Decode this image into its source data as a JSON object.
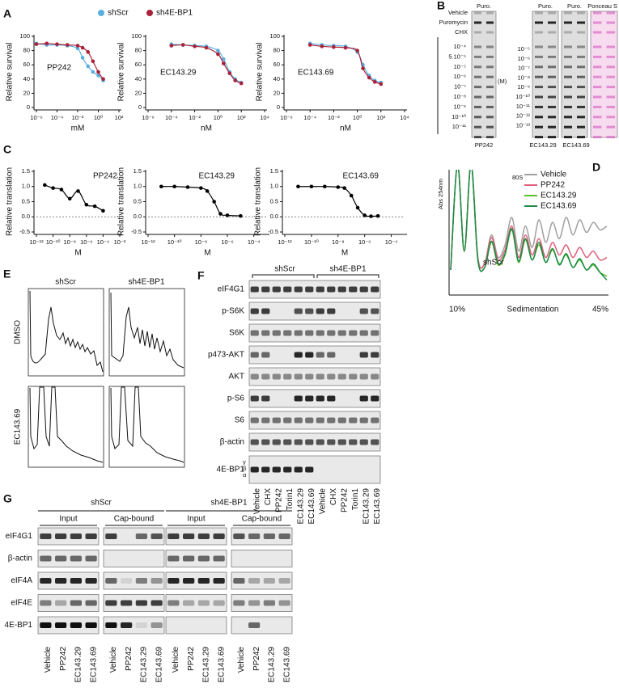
{
  "chart_data": [
    {
      "type": "dose_response",
      "title": "PP242",
      "x_label": "mM",
      "y_label": "Relative survival",
      "xscale": "log",
      "xlim": [
        1e-06,
        100
      ],
      "xticks": [
        {
          "value": 1e-06,
          "label": "10⁻⁶"
        },
        {
          "value": 0.0001,
          "label": "10⁻⁴"
        },
        {
          "value": 0.01,
          "label": "10⁻²"
        },
        {
          "value": 1,
          "label": "10⁰"
        },
        {
          "value": 100,
          "label": "10²"
        }
      ],
      "ylim": [
        0,
        100
      ],
      "yticks": [
        0,
        20,
        40,
        60,
        80,
        100
      ],
      "series": [
        {
          "name": "shScr",
          "color": "#5aaee0",
          "x": [
            1e-06,
            1e-05,
            0.0001,
            0.001,
            0.01,
            0.03,
            0.1,
            0.3,
            1,
            3
          ],
          "values": [
            90,
            88,
            88,
            87,
            83,
            70,
            58,
            50,
            45,
            38
          ]
        },
        {
          "name": "sh4E-BP1",
          "color": "#a8233a",
          "x": [
            1e-06,
            1e-05,
            0.0001,
            0.001,
            0.01,
            0.03,
            0.1,
            0.3,
            1,
            3
          ],
          "values": [
            89,
            90,
            89,
            88,
            87,
            84,
            78,
            65,
            50,
            40
          ]
        }
      ]
    },
    {
      "type": "dose_response",
      "title": "EC143.29",
      "x_label": "nM",
      "y_label": "Relative survival",
      "xscale": "log",
      "xlim": [
        1e-06,
        10000
      ],
      "xticks": [
        {
          "value": 1e-06,
          "label": "10⁻⁶"
        },
        {
          "value": 0.0001,
          "label": "10⁻⁴"
        },
        {
          "value": 0.01,
          "label": "10⁻²"
        },
        {
          "value": 1,
          "label": "10⁰"
        },
        {
          "value": 100,
          "label": "10²"
        },
        {
          "value": 10000,
          "label": "10⁴"
        }
      ],
      "ylim": [
        0,
        100
      ],
      "yticks": [
        0,
        20,
        40,
        60,
        80,
        100
      ],
      "series": [
        {
          "color": "#5aaee0",
          "x": [
            0.0001,
            0.001,
            0.01,
            0.1,
            1,
            3,
            10,
            30,
            100
          ],
          "values": [
            89,
            88,
            87,
            86,
            80,
            68,
            50,
            40,
            35
          ]
        },
        {
          "color": "#a8233a",
          "x": [
            0.0001,
            0.001,
            0.01,
            0.1,
            1,
            3,
            10,
            30,
            100
          ],
          "values": [
            87,
            88,
            86,
            84,
            75,
            62,
            48,
            38,
            34
          ]
        }
      ]
    },
    {
      "type": "dose_response",
      "title": "EC143.69",
      "x_label": "nM",
      "y_label": "Relative survival",
      "xscale": "log",
      "xlim": [
        1e-06,
        10000
      ],
      "xticks": [
        {
          "value": 1e-06,
          "label": "10⁻⁶"
        },
        {
          "value": 0.0001,
          "label": "10⁻⁴"
        },
        {
          "value": 0.01,
          "label": "10⁻²"
        },
        {
          "value": 1,
          "label": "10⁰"
        },
        {
          "value": 100,
          "label": "10²"
        },
        {
          "value": 10000,
          "label": "10⁴"
        }
      ],
      "ylim": [
        0,
        100
      ],
      "yticks": [
        0,
        20,
        40,
        60,
        80,
        100
      ],
      "series": [
        {
          "color": "#5aaee0",
          "x": [
            0.0001,
            0.001,
            0.01,
            0.1,
            1,
            3,
            10,
            30,
            100
          ],
          "values": [
            90,
            88,
            87,
            86,
            78,
            60,
            45,
            38,
            35
          ]
        },
        {
          "color": "#a8233a",
          "x": [
            0.0001,
            0.001,
            0.01,
            0.1,
            1,
            3,
            10,
            30,
            100
          ],
          "values": [
            88,
            86,
            85,
            84,
            80,
            55,
            42,
            36,
            33
          ]
        }
      ]
    },
    {
      "type": "dose_response",
      "title": "PP242",
      "x_label": "M",
      "y_label": "Relative translation",
      "xscale": "log",
      "reference_line": 0,
      "xlim": [
        1e-12,
        0.01
      ],
      "xticks": [
        {
          "value": 1e-12,
          "label": "10⁻¹²"
        },
        {
          "value": 1e-10,
          "label": "10⁻¹⁰"
        },
        {
          "value": 1e-08,
          "label": "10⁻⁸"
        },
        {
          "value": 1e-06,
          "label": "10⁻⁶"
        },
        {
          "value": 0.0001,
          "label": "10⁻⁴"
        },
        {
          "value": 0.01,
          "label": "10⁻²"
        }
      ],
      "ylim": [
        -0.5,
        1.5
      ],
      "yticks": [
        -0.5,
        {
          "value": 0,
          "label": "0.0"
        },
        0.5,
        {
          "value": 1,
          "label": "1.0"
        },
        1.5
      ],
      "series": [
        {
          "color": "#000000",
          "x": [
            1e-11,
            1e-10,
            1e-09,
            1e-08,
            1e-07,
            1e-06,
            1e-05,
            0.0001
          ],
          "values": [
            1.05,
            0.95,
            0.9,
            0.6,
            0.85,
            0.4,
            0.35,
            0.2
          ]
        }
      ]
    },
    {
      "type": "dose_response",
      "title": "EC143.29",
      "x_label": "M",
      "y_label": "Relative translation",
      "xscale": "log",
      "reference_line": 0,
      "xlim": [
        1e-12,
        0.001
      ],
      "xticks": [
        {
          "value": 1e-12,
          "label": "10⁻¹²"
        },
        {
          "value": 1e-10,
          "label": "10⁻¹⁰"
        },
        {
          "value": 1e-08,
          "label": "10⁻⁸"
        },
        {
          "value": 1e-06,
          "label": "10⁻⁶"
        },
        {
          "value": 0.0001,
          "label": "10⁻⁴"
        }
      ],
      "ylim": [
        -0.5,
        1.5
      ],
      "yticks": [
        -0.5,
        {
          "value": 0,
          "label": "0.0"
        },
        0.5,
        {
          "value": 1,
          "label": "1.0"
        },
        1.5
      ],
      "series": [
        {
          "color": "#000000",
          "x": [
            1e-11,
            1e-10,
            1e-09,
            1e-08,
            3e-08,
            1e-07,
            3e-07,
            1e-06,
            1e-05
          ],
          "values": [
            1.0,
            1.0,
            0.98,
            0.95,
            0.85,
            0.5,
            0.1,
            0.05,
            0.03
          ]
        }
      ]
    },
    {
      "type": "dose_response",
      "title": "EC143.69",
      "x_label": "M",
      "y_label": "Relative translation",
      "xscale": "log",
      "reference_line": 0,
      "xlim": [
        1e-12,
        0.001
      ],
      "xticks": [
        {
          "value": 1e-12,
          "label": "10⁻¹²"
        },
        {
          "value": 1e-10,
          "label": "10⁻¹⁰"
        },
        {
          "value": 1e-08,
          "label": "10⁻⁸"
        },
        {
          "value": 1e-06,
          "label": "10⁻⁶"
        },
        {
          "value": 0.0001,
          "label": "10⁻⁴"
        }
      ],
      "ylim": [
        -0.5,
        1.5
      ],
      "yticks": [
        -0.5,
        {
          "value": 0,
          "label": "0.0"
        },
        0.5,
        {
          "value": 1,
          "label": "1.0"
        },
        1.5
      ],
      "series": [
        {
          "color": "#000000",
          "x": [
            1e-11,
            1e-10,
            1e-09,
            1e-08,
            3e-08,
            1e-07,
            3e-07,
            1e-06,
            3e-06,
            1e-05
          ],
          "values": [
            1.0,
            1.0,
            1.0,
            0.98,
            0.95,
            0.7,
            0.3,
            0.05,
            0.02,
            0.03
          ]
        }
      ]
    },
    {
      "type": "line",
      "y_label": "Abs 254nm",
      "x_label": "Sedimentation",
      "x_start_label": "10%",
      "x_end_label": "45%",
      "annotations": [
        "80S",
        "shScr"
      ],
      "ylim": [
        0,
        100
      ],
      "series": [
        {
          "name": "Vehicle",
          "color": "#a0a0a0",
          "values": [
            20,
            105,
            35,
            105,
            30,
            25,
            48,
            30,
            40,
            62,
            35,
            55,
            38,
            60,
            42,
            58,
            45,
            62,
            48,
            60,
            50,
            58,
            52,
            55
          ]
        },
        {
          "name": "PP242",
          "color": "#e0607a",
          "values": [
            20,
            105,
            35,
            105,
            30,
            25,
            46,
            28,
            36,
            55,
            30,
            48,
            32,
            45,
            30,
            42,
            32,
            40,
            30,
            38,
            30,
            35,
            28,
            30
          ]
        },
        {
          "name": "EC143.29",
          "color": "#55c22a",
          "values": [
            20,
            105,
            35,
            105,
            28,
            22,
            42,
            24,
            32,
            52,
            26,
            44,
            28,
            40,
            26,
            36,
            25,
            32,
            22,
            28,
            20,
            24,
            18,
            15
          ]
        },
        {
          "name": "EC143.69",
          "color": "#1e8a4a",
          "values": [
            20,
            105,
            35,
            105,
            28,
            22,
            43,
            25,
            33,
            53,
            27,
            45,
            28,
            42,
            26,
            37,
            24,
            33,
            22,
            29,
            20,
            25,
            18,
            12
          ]
        }
      ]
    }
  ],
  "panel_labels": [
    "A",
    "B",
    "C",
    "D",
    "E",
    "F",
    "G"
  ],
  "panel_b": {
    "headers": [
      "Puro.",
      "Puro.",
      "Puro.",
      "Ponceau S"
    ],
    "treatments": [
      "Vehicle",
      "Puromycin",
      "CHX"
    ],
    "concentrations_1": [
      "10⁻⁴",
      "5.10⁻⁵",
      "10⁻⁵",
      "10⁻⁶",
      "10⁻⁷",
      "10⁻⁸",
      "10⁻⁹",
      "10⁻¹⁰",
      "10⁻¹¹"
    ],
    "concentrations_2": [
      "10⁻⁵",
      "10⁻⁶",
      "10⁻⁷",
      "10⁻⁸",
      "10⁻⁹",
      "10⁻¹⁰",
      "10⁻¹¹",
      "10⁻¹²",
      "10⁻¹³"
    ],
    "unit": "(M)",
    "drugs": [
      "PP242",
      "EC143.29",
      "EC143.69"
    ]
  },
  "panel_e": {
    "columns": [
      "shScr",
      "sh4E-BP1"
    ],
    "rows": [
      "DMSO",
      "EC143.69"
    ]
  },
  "panel_f": {
    "groups": [
      "shScr",
      "sh4E-BP1"
    ],
    "rows": [
      "eIF4G1",
      "p-S6K",
      "S6K",
      "p473-AKT",
      "AKT",
      "p-S6",
      "S6",
      "β-actin",
      "4E-BP1"
    ],
    "isoforms": [
      "γ",
      "β",
      "α"
    ],
    "lanes": [
      "Vehicle",
      "CHX",
      "PP242",
      "Torin1",
      "EC143.29",
      "EC143.69",
      "Vehicle",
      "CHX",
      "PP242",
      "Torin1",
      "EC143.29",
      "EC143.69"
    ]
  },
  "panel_g": {
    "groups": [
      "shScr",
      "sh4E-BP1"
    ],
    "fractions": [
      "Input",
      "Cap-bound",
      "Input",
      "Cap-bound"
    ],
    "rows": [
      "eIF4G1",
      "β-actin",
      "eIF4A",
      "eIF4E",
      "4E-BP1"
    ],
    "lanes": [
      "Vehicle",
      "PP242",
      "EC143.29",
      "EC143.69",
      "Vehicle",
      "PP242",
      "EC143.29",
      "EC143.69",
      "Vehicle",
      "PP242",
      "EC143.29",
      "EC143.69",
      "Vehicle",
      "PP242",
      "EC143.29",
      "EC143.69"
    ]
  }
}
